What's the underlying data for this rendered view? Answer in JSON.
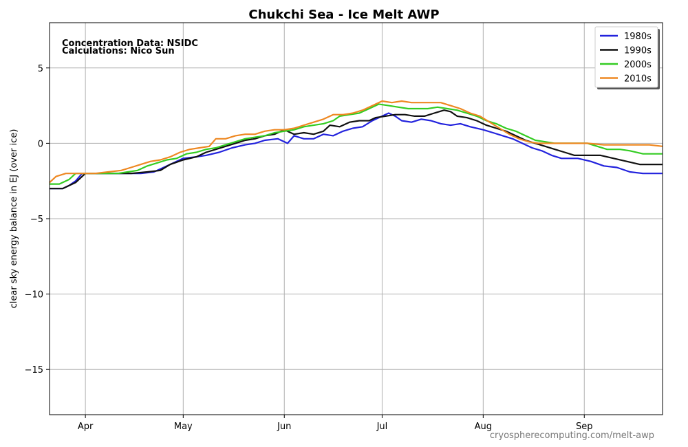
{
  "chart_data": {
    "type": "line",
    "title": "Chukchi Sea - Ice Melt AWP",
    "xlabel": "",
    "ylabel": "clear sky energy balance in EJ (over ice)",
    "ylim": [
      -18,
      8
    ],
    "xlim": [
      80,
      268
    ],
    "grid": true,
    "legend_position": "top-right",
    "annotations": [
      "Concentration Data: NSIDC",
      "Calculations: Nico Sun"
    ],
    "credit": "cryospherecomputing.com/melt-awp",
    "x_ticks": [
      {
        "label": "Apr",
        "day": 91
      },
      {
        "label": "May",
        "day": 121
      },
      {
        "label": "Jun",
        "day": 152
      },
      {
        "label": "Jul",
        "day": 182
      },
      {
        "label": "Aug",
        "day": 213
      },
      {
        "label": "Sep",
        "day": 244
      }
    ],
    "y_ticks": [
      {
        "label": "5",
        "value": 5
      },
      {
        "label": "0",
        "value": 0
      },
      {
        "label": "−5",
        "value": -5
      },
      {
        "label": "−10",
        "value": -10
      },
      {
        "label": "−15",
        "value": -15
      }
    ],
    "series": [
      {
        "name": "1980s",
        "color": "#2222dd",
        "points": [
          [
            80,
            -3
          ],
          [
            84,
            -3
          ],
          [
            86,
            -2.8
          ],
          [
            88,
            -2.5
          ],
          [
            90,
            -2
          ],
          [
            95,
            -2
          ],
          [
            100,
            -2
          ],
          [
            105,
            -2
          ],
          [
            108,
            -2
          ],
          [
            112,
            -1.9
          ],
          [
            115,
            -1.6
          ],
          [
            118,
            -1.3
          ],
          [
            121,
            -1.0
          ],
          [
            125,
            -0.9
          ],
          [
            128,
            -0.8
          ],
          [
            132,
            -0.6
          ],
          [
            136,
            -0.3
          ],
          [
            140,
            -0.1
          ],
          [
            143,
            0.0
          ],
          [
            146,
            0.2
          ],
          [
            150,
            0.3
          ],
          [
            153,
            0.0
          ],
          [
            155,
            0.5
          ],
          [
            158,
            0.3
          ],
          [
            161,
            0.3
          ],
          [
            164,
            0.6
          ],
          [
            167,
            0.5
          ],
          [
            170,
            0.8
          ],
          [
            173,
            1.0
          ],
          [
            176,
            1.1
          ],
          [
            179,
            1.5
          ],
          [
            182,
            1.8
          ],
          [
            184,
            2.0
          ],
          [
            186,
            1.8
          ],
          [
            188,
            1.5
          ],
          [
            191,
            1.4
          ],
          [
            194,
            1.6
          ],
          [
            197,
            1.5
          ],
          [
            200,
            1.3
          ],
          [
            203,
            1.2
          ],
          [
            206,
            1.3
          ],
          [
            209,
            1.1
          ],
          [
            213,
            0.9
          ],
          [
            216,
            0.7
          ],
          [
            219,
            0.5
          ],
          [
            222,
            0.3
          ],
          [
            225,
            0.0
          ],
          [
            228,
            -0.3
          ],
          [
            231,
            -0.5
          ],
          [
            234,
            -0.8
          ],
          [
            237,
            -1.0
          ],
          [
            242,
            -1.0
          ],
          [
            246,
            -1.2
          ],
          [
            250,
            -1.5
          ],
          [
            254,
            -1.6
          ],
          [
            258,
            -1.9
          ],
          [
            262,
            -2.0
          ],
          [
            268,
            -2.0
          ]
        ]
      },
      {
        "name": "1990s",
        "color": "#111111",
        "points": [
          [
            80,
            -3
          ],
          [
            84,
            -3
          ],
          [
            88,
            -2.6
          ],
          [
            91,
            -2
          ],
          [
            95,
            -2
          ],
          [
            100,
            -2
          ],
          [
            105,
            -2
          ],
          [
            110,
            -1.9
          ],
          [
            114,
            -1.8
          ],
          [
            117,
            -1.4
          ],
          [
            121,
            -1.1
          ],
          [
            125,
            -0.9
          ],
          [
            128,
            -0.6
          ],
          [
            131,
            -0.4
          ],
          [
            134,
            -0.2
          ],
          [
            137,
            0.0
          ],
          [
            140,
            0.2
          ],
          [
            143,
            0.3
          ],
          [
            146,
            0.5
          ],
          [
            149,
            0.6
          ],
          [
            152,
            0.9
          ],
          [
            155,
            0.6
          ],
          [
            158,
            0.7
          ],
          [
            161,
            0.6
          ],
          [
            164,
            0.8
          ],
          [
            166,
            1.2
          ],
          [
            169,
            1.1
          ],
          [
            172,
            1.4
          ],
          [
            175,
            1.5
          ],
          [
            178,
            1.5
          ],
          [
            180,
            1.7
          ],
          [
            183,
            1.8
          ],
          [
            186,
            1.9
          ],
          [
            189,
            1.9
          ],
          [
            192,
            1.8
          ],
          [
            195,
            1.8
          ],
          [
            198,
            2.0
          ],
          [
            201,
            2.2
          ],
          [
            203,
            2.1
          ],
          [
            205,
            1.8
          ],
          [
            208,
            1.7
          ],
          [
            211,
            1.5
          ],
          [
            214,
            1.2
          ],
          [
            217,
            1.0
          ],
          [
            220,
            0.8
          ],
          [
            223,
            0.5
          ],
          [
            226,
            0.2
          ],
          [
            229,
            0.0
          ],
          [
            232,
            -0.2
          ],
          [
            235,
            -0.4
          ],
          [
            238,
            -0.6
          ],
          [
            241,
            -0.8
          ],
          [
            245,
            -0.8
          ],
          [
            249,
            -0.8
          ],
          [
            253,
            -1.0
          ],
          [
            257,
            -1.2
          ],
          [
            261,
            -1.4
          ],
          [
            265,
            -1.4
          ],
          [
            268,
            -1.4
          ]
        ]
      },
      {
        "name": "2000s",
        "color": "#33cc22",
        "points": [
          [
            80,
            -2.7
          ],
          [
            83,
            -2.7
          ],
          [
            86,
            -2.4
          ],
          [
            88,
            -2.0
          ],
          [
            92,
            -2
          ],
          [
            96,
            -2
          ],
          [
            101,
            -2
          ],
          [
            104,
            -1.9
          ],
          [
            107,
            -1.8
          ],
          [
            110,
            -1.5
          ],
          [
            113,
            -1.3
          ],
          [
            116,
            -1.1
          ],
          [
            119,
            -1.0
          ],
          [
            122,
            -0.7
          ],
          [
            125,
            -0.6
          ],
          [
            128,
            -0.4
          ],
          [
            131,
            -0.3
          ],
          [
            134,
            -0.1
          ],
          [
            137,
            0.1
          ],
          [
            140,
            0.3
          ],
          [
            143,
            0.4
          ],
          [
            146,
            0.5
          ],
          [
            149,
            0.7
          ],
          [
            152,
            0.8
          ],
          [
            155,
            0.9
          ],
          [
            158,
            1.1
          ],
          [
            161,
            1.2
          ],
          [
            164,
            1.3
          ],
          [
            167,
            1.5
          ],
          [
            169,
            1.8
          ],
          [
            172,
            1.9
          ],
          [
            175,
            2.0
          ],
          [
            178,
            2.3
          ],
          [
            181,
            2.6
          ],
          [
            184,
            2.5
          ],
          [
            187,
            2.4
          ],
          [
            190,
            2.3
          ],
          [
            193,
            2.3
          ],
          [
            196,
            2.3
          ],
          [
            199,
            2.4
          ],
          [
            202,
            2.3
          ],
          [
            205,
            2.2
          ],
          [
            208,
            2.0
          ],
          [
            211,
            1.8
          ],
          [
            214,
            1.5
          ],
          [
            217,
            1.3
          ],
          [
            220,
            1.0
          ],
          [
            223,
            0.8
          ],
          [
            226,
            0.5
          ],
          [
            229,
            0.2
          ],
          [
            232,
            0.1
          ],
          [
            235,
            0.0
          ],
          [
            240,
            0.0
          ],
          [
            245,
            0.0
          ],
          [
            248,
            -0.2
          ],
          [
            251,
            -0.4
          ],
          [
            255,
            -0.4
          ],
          [
            258,
            -0.5
          ],
          [
            262,
            -0.7
          ],
          [
            268,
            -0.7
          ]
        ]
      },
      {
        "name": "2010s",
        "color": "#ee8822",
        "points": [
          [
            80,
            -2.6
          ],
          [
            82,
            -2.2
          ],
          [
            85,
            -2.0
          ],
          [
            89,
            -2
          ],
          [
            94,
            -2
          ],
          [
            98,
            -1.9
          ],
          [
            102,
            -1.8
          ],
          [
            105,
            -1.6
          ],
          [
            108,
            -1.4
          ],
          [
            111,
            -1.2
          ],
          [
            114,
            -1.1
          ],
          [
            117,
            -0.9
          ],
          [
            120,
            -0.6
          ],
          [
            123,
            -0.4
          ],
          [
            126,
            -0.3
          ],
          [
            129,
            -0.2
          ],
          [
            131,
            0.3
          ],
          [
            134,
            0.3
          ],
          [
            137,
            0.5
          ],
          [
            140,
            0.6
          ],
          [
            143,
            0.6
          ],
          [
            146,
            0.8
          ],
          [
            149,
            0.9
          ],
          [
            152,
            0.9
          ],
          [
            155,
            1.0
          ],
          [
            158,
            1.2
          ],
          [
            161,
            1.4
          ],
          [
            164,
            1.6
          ],
          [
            167,
            1.9
          ],
          [
            170,
            1.9
          ],
          [
            173,
            2.0
          ],
          [
            176,
            2.2
          ],
          [
            179,
            2.5
          ],
          [
            182,
            2.8
          ],
          [
            185,
            2.7
          ],
          [
            188,
            2.8
          ],
          [
            191,
            2.7
          ],
          [
            194,
            2.7
          ],
          [
            197,
            2.7
          ],
          [
            200,
            2.7
          ],
          [
            203,
            2.5
          ],
          [
            206,
            2.3
          ],
          [
            209,
            2.0
          ],
          [
            212,
            1.8
          ],
          [
            215,
            1.4
          ],
          [
            218,
            1.0
          ],
          [
            221,
            0.6
          ],
          [
            224,
            0.3
          ],
          [
            227,
            0.1
          ],
          [
            230,
            0.0
          ],
          [
            235,
            0.0
          ],
          [
            240,
            0.0
          ],
          [
            245,
            0.0
          ],
          [
            250,
            -0.1
          ],
          [
            255,
            -0.1
          ],
          [
            260,
            -0.1
          ],
          [
            264,
            -0.1
          ],
          [
            268,
            -0.2
          ]
        ]
      }
    ]
  }
}
